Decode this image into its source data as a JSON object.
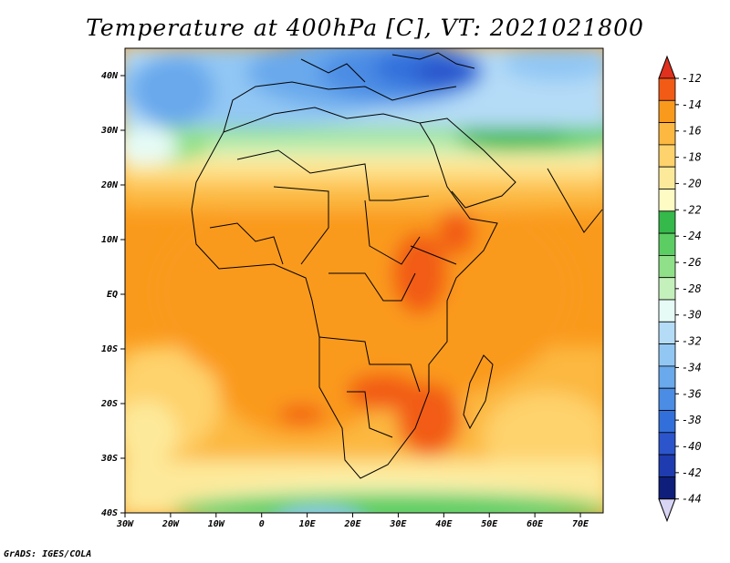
{
  "title": "Temperature at 400hPa [C], VT: 2021021800",
  "credit": "GrADS: IGES/COLA",
  "map": {
    "lat_labels": [
      "40N",
      "30N",
      "20N",
      "10N",
      "EQ",
      "10S",
      "20S",
      "30S",
      "40S"
    ],
    "lon_labels": [
      "30W",
      "20W",
      "10W",
      "0",
      "10E",
      "20E",
      "30E",
      "40E",
      "50E",
      "60E",
      "70E"
    ],
    "lon_range": [
      -30,
      75
    ],
    "lat_range": [
      -40,
      45
    ]
  },
  "colorbar": {
    "labels": [
      "-12",
      "-14",
      "-16",
      "-18",
      "-20",
      "-22",
      "-24",
      "-26",
      "-28",
      "-30",
      "-32",
      "-34",
      "-36",
      "-38",
      "-40",
      "-42",
      "-44"
    ],
    "colors": [
      "#e0301e",
      "#f25b16",
      "#fa9a1c",
      "#fcb840",
      "#fed26c",
      "#fde99a",
      "#fefbc4",
      "#34b94a",
      "#5ccd63",
      "#8fe088",
      "#c4f0bb",
      "#e6fbf6",
      "#b5dcf7",
      "#92c7f4",
      "#69a9ec",
      "#4b8ce4",
      "#336fdb",
      "#2c55cc",
      "#1e3cb0",
      "#0e1e7a",
      "#d8d4f4"
    ]
  }
}
